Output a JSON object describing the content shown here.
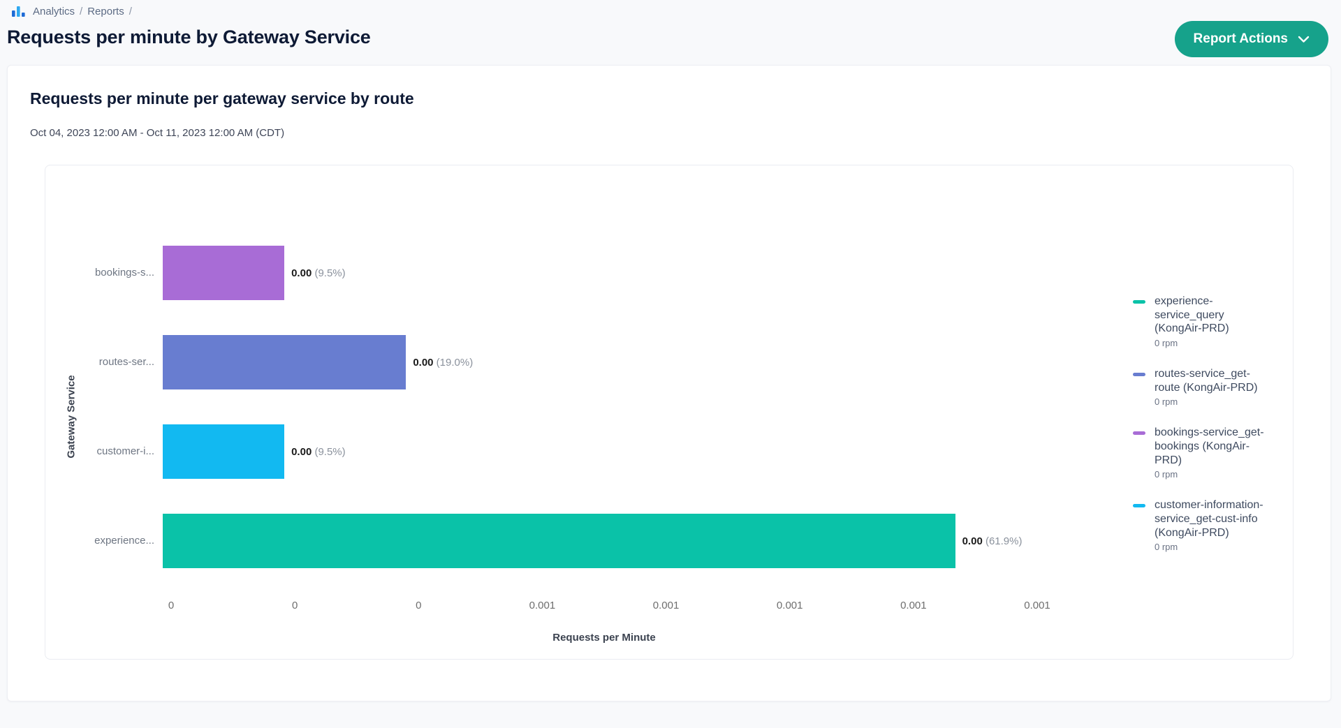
{
  "breadcrumb": {
    "items": [
      "Analytics",
      "Reports"
    ],
    "separator": "/"
  },
  "page": {
    "title": "Requests per minute by Gateway Service"
  },
  "header": {
    "report_actions_label": "Report Actions"
  },
  "card": {
    "title": "Requests per minute per gateway service by route",
    "date_range": "Oct 04, 2023 12:00 AM - Oct 11, 2023 12:00 AM (CDT)"
  },
  "colors": {
    "brand_button": "#16A28B",
    "teal": "#0AC2A8",
    "blue": "#687DD0",
    "purple": "#A86CD6",
    "cyan": "#12B9F1"
  },
  "chart_data": {
    "type": "bar",
    "orientation": "horizontal",
    "title": "Requests per minute per gateway service by route",
    "xlabel": "Requests per Minute",
    "ylabel": "Gateway Service",
    "x_ticks": [
      "0",
      "0",
      "0",
      "0.001",
      "0.001",
      "0.001",
      "0.001",
      "0.001"
    ],
    "grid": false,
    "legend_position": "right",
    "bars": [
      {
        "category": "bookings-s...",
        "value": 0.0,
        "value_label": "0.00",
        "share_pct": 9.5,
        "pct_label": "(9.5%)",
        "color": "#A86CD6"
      },
      {
        "category": "routes-ser...",
        "value": 0.0,
        "value_label": "0.00",
        "share_pct": 19.0,
        "pct_label": "(19.0%)",
        "color": "#687DD0"
      },
      {
        "category": "customer-i...",
        "value": 0.0,
        "value_label": "0.00",
        "share_pct": 9.5,
        "pct_label": "(9.5%)",
        "color": "#12B9F1"
      },
      {
        "category": "experience...",
        "value": 0.0,
        "value_label": "0.00",
        "share_pct": 61.9,
        "pct_label": "(61.9%)",
        "color": "#0AC2A8"
      }
    ],
    "legend": [
      {
        "label": "experience-service_query (KongAir-PRD)",
        "sub": "0 rpm",
        "color": "#0AC2A8"
      },
      {
        "label": "routes-service_get-route (KongAir-PRD)",
        "sub": "0 rpm",
        "color": "#687DD0"
      },
      {
        "label": "bookings-service_get-bookings (KongAir-PRD)",
        "sub": "0 rpm",
        "color": "#A86CD6"
      },
      {
        "label": "customer-information-service_get-cust-info (KongAir-PRD)",
        "sub": "0 rpm",
        "color": "#12B9F1"
      }
    ]
  }
}
